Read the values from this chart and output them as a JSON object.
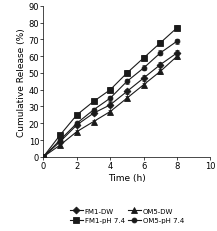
{
  "time": [
    0,
    1,
    2,
    3,
    4,
    5,
    6,
    7,
    8
  ],
  "FM1_DW": [
    0,
    9,
    19,
    26,
    31,
    39,
    47,
    55,
    62
  ],
  "FM1_pH74": [
    0,
    13,
    25,
    33,
    40,
    50,
    59,
    68,
    77
  ],
  "OM5_DW": [
    0,
    7,
    15,
    21,
    27,
    35,
    43,
    51,
    60
  ],
  "OM5_pH74": [
    0,
    10,
    20,
    28,
    35,
    45,
    53,
    62,
    69
  ],
  "FM1_DW_err": [
    0,
    0.8,
    1.0,
    1.2,
    1.5,
    1.5,
    1.5,
    1.5,
    1.5
  ],
  "FM1_pH74_err": [
    0,
    0.8,
    1.0,
    1.2,
    1.5,
    1.5,
    1.5,
    1.5,
    1.5
  ],
  "OM5_DW_err": [
    0,
    0.8,
    1.0,
    1.2,
    1.2,
    1.2,
    1.2,
    1.5,
    1.5
  ],
  "OM5_pH74_err": [
    0,
    0.8,
    1.0,
    1.2,
    1.5,
    1.5,
    1.5,
    1.5,
    1.5
  ],
  "xlabel": "Time (h)",
  "ylabel": "Cumulative Release (%)",
  "xlim": [
    0,
    10
  ],
  "ylim": [
    0,
    90
  ],
  "xticks": [
    0,
    2,
    4,
    6,
    8,
    10
  ],
  "yticks": [
    0,
    10,
    20,
    30,
    40,
    50,
    60,
    70,
    80,
    90
  ],
  "legend_labels": [
    "FM1-DW",
    "FM1-pH 7.4",
    "OM5-DW",
    "OM5-pH 7.4"
  ],
  "markers": [
    "D",
    "s",
    "^",
    "o"
  ],
  "marker_sizes": [
    3.5,
    4.5,
    4.0,
    3.5
  ],
  "color": "#1a1a1a",
  "linewidth": 0.8
}
